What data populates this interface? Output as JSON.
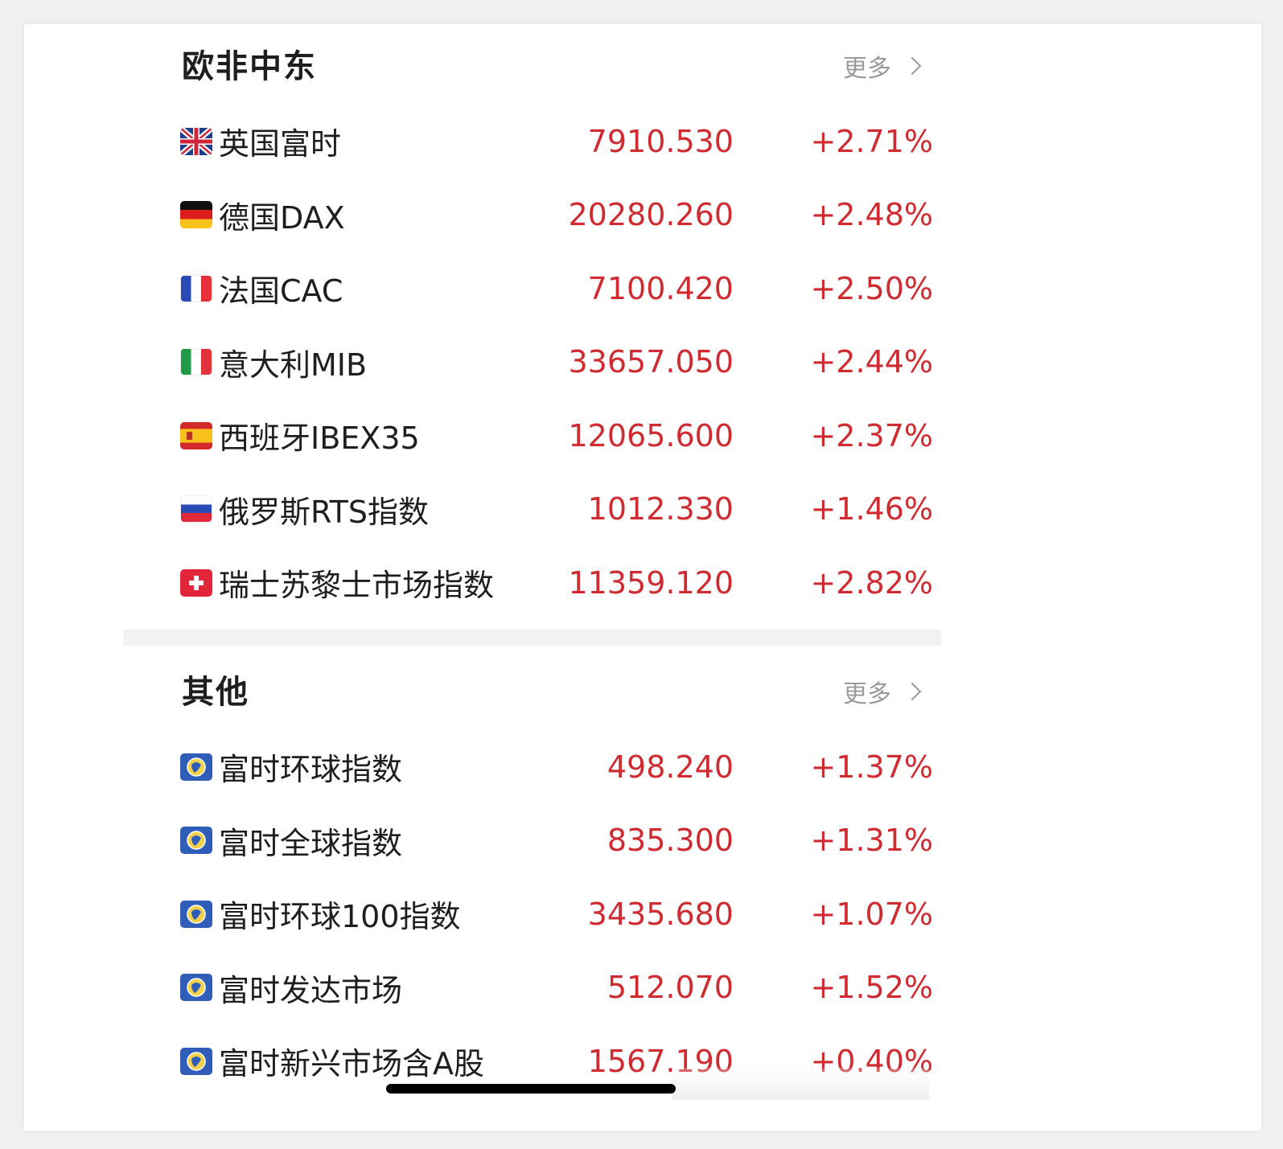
{
  "sections": [
    {
      "title": "欧非中东",
      "more_label": "更多",
      "rows": [
        {
          "name": "英国富时",
          "value": "7910.530",
          "change": "+2.71%",
          "flag": "uk-flag-icon"
        },
        {
          "name": "德国DAX",
          "value": "20280.260",
          "change": "+2.48%",
          "flag": "germany-flag-icon"
        },
        {
          "name": "法国CAC",
          "value": "7100.420",
          "change": "+2.50%",
          "flag": "france-flag-icon"
        },
        {
          "name": "意大利MIB",
          "value": "33657.050",
          "change": "+2.44%",
          "flag": "italy-flag-icon"
        },
        {
          "name": "西班牙IBEX35",
          "value": "12065.600",
          "change": "+2.37%",
          "flag": "spain-flag-icon"
        },
        {
          "name": "俄罗斯RTS指数",
          "value": "1012.330",
          "change": "+1.46%",
          "flag": "russia-flag-icon"
        },
        {
          "name": "瑞士苏黎士市场指数",
          "value": "11359.120",
          "change": "+2.82%",
          "flag": "switzerland-flag-icon"
        }
      ]
    },
    {
      "title": "其他",
      "more_label": "更多",
      "rows": [
        {
          "name": "富时环球指数",
          "value": "498.240",
          "change": "+1.37%",
          "flag": "globe-icon"
        },
        {
          "name": "富时全球指数",
          "value": "835.300",
          "change": "+1.31%",
          "flag": "globe-icon"
        },
        {
          "name": "富时环球100指数",
          "value": "3435.680",
          "change": "+1.07%",
          "flag": "globe-icon"
        },
        {
          "name": "富时发达市场",
          "value": "512.070",
          "change": "+1.52%",
          "flag": "globe-icon"
        },
        {
          "name": "富时新兴市场含A股",
          "value": "1567.190",
          "change": "+0.40%",
          "flag": "globe-icon"
        }
      ]
    }
  ],
  "colors": {
    "up": "#cf2b31",
    "text": "#1e1e1e",
    "muted": "#9a9a9a"
  }
}
